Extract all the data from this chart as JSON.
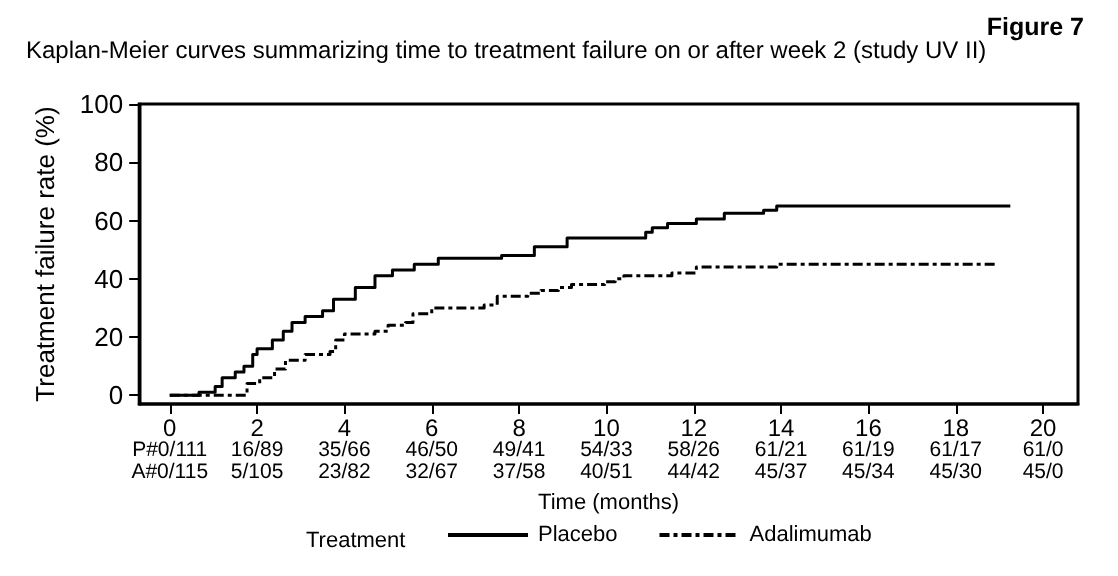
{
  "chart_data": {
    "type": "step",
    "title": "Kaplan-Meier curves summarizing time to treatment failure on or after week 2 (study UV II)",
    "annotations": [
      "Figure 7",
      "P#0/111",
      "16/89",
      "35/66",
      "46/50",
      "49/41",
      "54/33",
      "58/26",
      "61/21",
      "61/19",
      "61/17",
      "61/0",
      "A#0/115",
      "5/105",
      "23/82",
      "32/67",
      "37/58",
      "40/51",
      "44/42",
      "45/37",
      "45/34",
      "45/30",
      "45/0"
    ],
    "xlabel": "Time (months)",
    "ylabel": "Treatment failure rate (%)",
    "legend_title": "Treatment",
    "xlim": [
      -0.7,
      20.8
    ],
    "ylim": [
      -3,
      100
    ],
    "yticks": [
      0,
      20,
      40,
      60,
      80,
      100
    ],
    "xticks": [
      0,
      2,
      4,
      6,
      8,
      10,
      12,
      14,
      16,
      18,
      20
    ],
    "grid": false,
    "legend": "bottom",
    "marker": "none",
    "series": [
      {
        "name": "Placebo",
        "color": "#000000",
        "line_style": "solid",
        "x": [
          0,
          0.67,
          1.04,
          1.2,
          1.5,
          1.7,
          1.9,
          2.0,
          2.35,
          2.6,
          2.8,
          3.1,
          3.5,
          3.75,
          4.25,
          4.7,
          5.1,
          5.6,
          6.15,
          7.6,
          8.35,
          9.1,
          10.9,
          11.05,
          11.4,
          12.06,
          12.7,
          13.6,
          13.9,
          19.25
        ],
        "values": [
          0,
          1,
          3,
          6,
          8,
          10,
          14,
          16,
          19,
          22,
          25,
          27,
          29,
          33,
          37,
          41,
          43,
          45,
          47,
          48,
          51,
          54,
          56,
          57.5,
          59,
          60.5,
          62.5,
          63.5,
          65,
          65
        ]
      },
      {
        "name": "Adalimumab",
        "color": "#000000",
        "line_style": "dashed",
        "x": [
          0,
          1.77,
          2.06,
          2.4,
          2.65,
          3.1,
          3.67,
          3.8,
          4.0,
          4.7,
          5.0,
          5.4,
          5.57,
          6.0,
          7.2,
          7.5,
          8.2,
          8.5,
          8.9,
          9.2,
          9.96,
          10.2,
          10.4,
          11.5,
          12.06,
          13.9,
          18.95
        ],
        "values": [
          0,
          4,
          6,
          9,
          12,
          14,
          15,
          19,
          21,
          22,
          24,
          25,
          28,
          30,
          31,
          34,
          35,
          36,
          37,
          38,
          39,
          40,
          41,
          42,
          44,
          45,
          45
        ]
      }
    ]
  }
}
